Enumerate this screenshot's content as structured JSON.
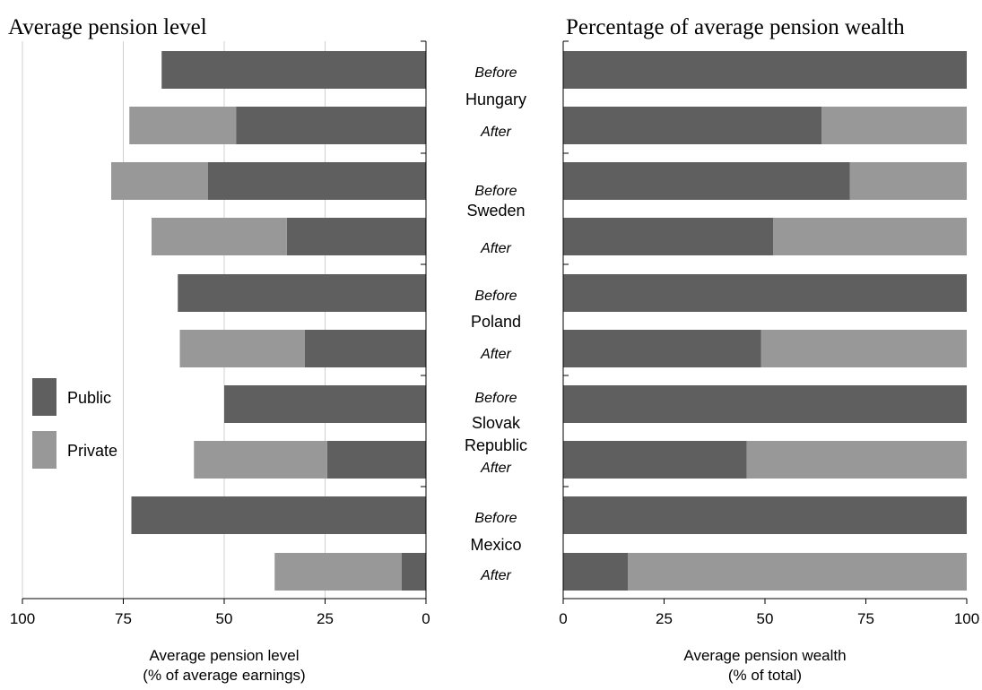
{
  "chart_data": [
    {
      "type": "bar",
      "orientation": "horizontal",
      "stacked": true,
      "title": "Average pension level",
      "xlabel": [
        "Average pension level",
        "(% of average earnings)"
      ],
      "xlim": [
        100,
        0
      ],
      "x_reversed": true,
      "xticks": [
        100,
        75,
        50,
        25,
        0
      ],
      "grid": true,
      "legend_position": "left-middle",
      "series": [
        {
          "name": "Public",
          "color": "#5f5f5f",
          "values": [
            65.5,
            47,
            54,
            34.5,
            61.5,
            30,
            50,
            24.5,
            73,
            6
          ]
        },
        {
          "name": "Private",
          "color": "#989898",
          "values": [
            0,
            26.5,
            24,
            33.5,
            0,
            31,
            0,
            33,
            0,
            31.5
          ]
        }
      ],
      "categories": [
        "Hungary Before",
        "Hungary After",
        "Sweden Before",
        "Sweden After",
        "Poland Before",
        "Poland After",
        "Slovak Republic Before",
        "Slovak Republic After",
        "Mexico Before",
        "Mexico After"
      ]
    },
    {
      "type": "bar",
      "orientation": "horizontal",
      "stacked": true,
      "title": "Percentage of average pension wealth",
      "xlabel": [
        "Average pension wealth",
        "(% of total)"
      ],
      "xlim": [
        0,
        100
      ],
      "xticks": [
        0,
        25,
        50,
        75,
        100
      ],
      "grid": false,
      "series": [
        {
          "name": "Public",
          "color": "#5f5f5f",
          "values": [
            100,
            64,
            71,
            52,
            100,
            49,
            100,
            45.5,
            100,
            16
          ]
        },
        {
          "name": "Private",
          "color": "#989898",
          "values": [
            0,
            36,
            29,
            48,
            0,
            51,
            0,
            54.5,
            0,
            84
          ]
        }
      ],
      "categories": [
        "Hungary Before",
        "Hungary After",
        "Sweden Before",
        "Sweden After",
        "Poland Before",
        "Poland After",
        "Slovak Republic Before",
        "Slovak Republic After",
        "Mexico Before",
        "Mexico After"
      ]
    }
  ],
  "groups": [
    {
      "country": [
        "Hungary"
      ],
      "phases": [
        "Before",
        "After"
      ]
    },
    {
      "country": [
        "Sweden"
      ],
      "phases": [
        "Before",
        "After"
      ]
    },
    {
      "country": [
        "Poland"
      ],
      "phases": [
        "Before",
        "After"
      ]
    },
    {
      "country": [
        "Slovak",
        "Republic"
      ],
      "phases": [
        "Before",
        "After"
      ]
    },
    {
      "country": [
        "Mexico"
      ],
      "phases": [
        "Before",
        "After"
      ]
    }
  ],
  "legend": [
    {
      "label": "Public",
      "color": "#5f5f5f"
    },
    {
      "label": "Private",
      "color": "#989898"
    }
  ]
}
